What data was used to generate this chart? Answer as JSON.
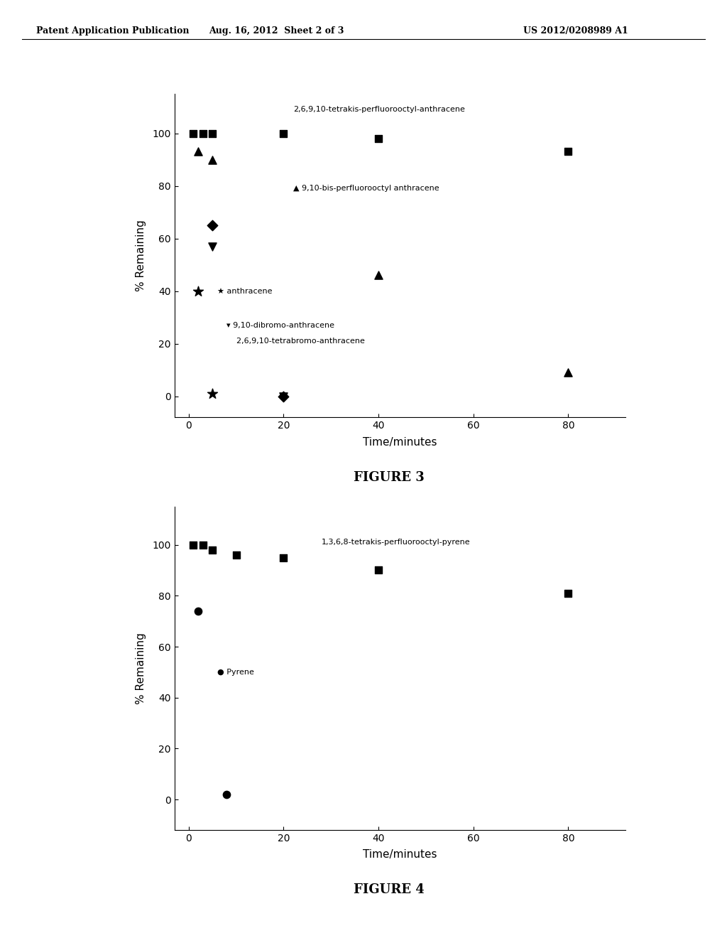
{
  "header_left": "Patent Application Publication",
  "header_center": "Aug. 16, 2012  Sheet 2 of 3",
  "header_right": "US 2012/0208989 A1",
  "figure3": {
    "title": "FIGURE 3",
    "xlabel": "Time/minutes",
    "ylabel": "% Remaining",
    "xlim": [
      -3,
      92
    ],
    "ylim": [
      -8,
      115
    ],
    "xticks": [
      0,
      20,
      40,
      60,
      80
    ],
    "yticks": [
      0,
      20,
      40,
      60,
      80,
      100
    ],
    "series": [
      {
        "name": "2,6,9,10-tetrakis-perfluorooctyl-anthracene",
        "marker": "s",
        "x": [
          1,
          3,
          5,
          20,
          40,
          80
        ],
        "y": [
          100,
          100,
          100,
          100,
          98,
          93
        ]
      },
      {
        "name": "9,10-bis-perfluorooctyl anthracene",
        "marker": "^",
        "x": [
          2,
          5,
          40,
          80
        ],
        "y": [
          93,
          90,
          46,
          9
        ]
      },
      {
        "name": "anthracene",
        "marker": "*",
        "x": [
          2,
          5
        ],
        "y": [
          40,
          1
        ]
      },
      {
        "name": "9,10-dibromo-anthracene",
        "marker": "v",
        "x": [
          5,
          20
        ],
        "y": [
          57,
          0
        ]
      },
      {
        "name": "2,6,9,10-tetrabromo-anthracene",
        "marker": "D",
        "x": [
          5,
          20
        ],
        "y": [
          65,
          0
        ]
      }
    ],
    "ann_tetrakis_x": 22,
    "ann_tetrakis_y": 109,
    "ann_bis_x": 22,
    "ann_bis_y": 79,
    "ann_anth_x": 6,
    "ann_anth_y": 40,
    "ann_dibromo_x": 8,
    "ann_dibromo_y": 27,
    "ann_tetrabromo_x": 8,
    "ann_tetrabromo_y": 21
  },
  "figure4": {
    "title": "FIGURE 4",
    "xlabel": "Time/minutes",
    "ylabel": "% Remaining",
    "xlim": [
      -3,
      92
    ],
    "ylim": [
      -12,
      115
    ],
    "xticks": [
      0,
      20,
      40,
      60,
      80
    ],
    "yticks": [
      0,
      20,
      40,
      60,
      80,
      100
    ],
    "series": [
      {
        "name": "1,3,6,8-tetrakis-perfluorooctyl-pyrene",
        "marker": "s",
        "x": [
          1,
          3,
          5,
          10,
          20,
          40,
          80
        ],
        "y": [
          100,
          100,
          98,
          96,
          95,
          90,
          81
        ]
      },
      {
        "name": "Pyrene",
        "marker": "o",
        "x": [
          2,
          8
        ],
        "y": [
          74,
          2
        ]
      }
    ],
    "ann_tetrakis_x": 28,
    "ann_tetrakis_y": 101,
    "ann_pyrene_x": 6,
    "ann_pyrene_y": 50
  }
}
